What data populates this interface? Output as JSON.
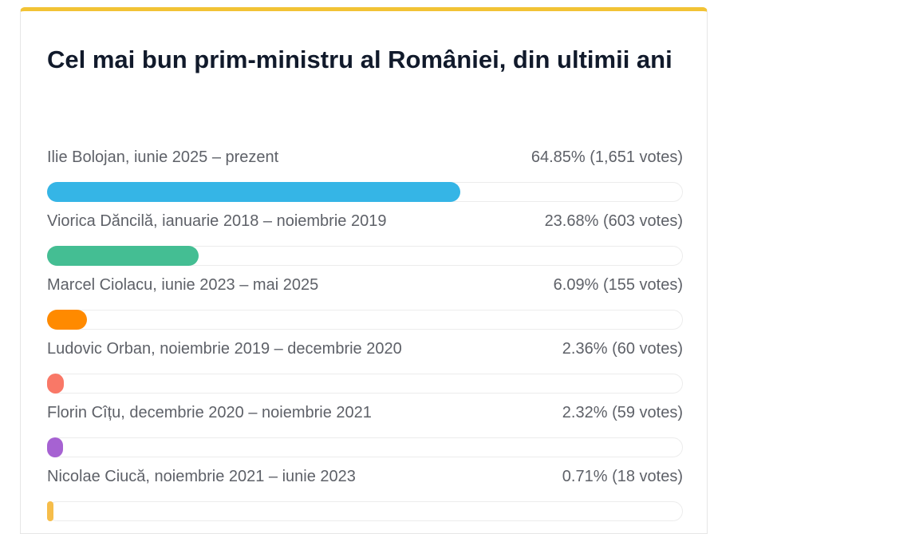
{
  "poll": {
    "title": "Cel mai bun prim-ministru al României, din ultimii ani",
    "accent_color": "#f2c335",
    "options": [
      {
        "label": "Ilie Bolojan, iunie 2025 – prezent",
        "result": "64.85% (1,651 votes)",
        "percent": 64.85,
        "color": "#35b5e6"
      },
      {
        "label": "Viorica Dăncilă, ianuarie 2018 – noiembrie 2019",
        "result": "23.68% (603 votes)",
        "percent": 23.68,
        "color": "#44be93"
      },
      {
        "label": "Marcel Ciolacu, iunie 2023 – mai 2025",
        "result": "6.09% (155 votes)",
        "percent": 6.09,
        "color": "#ff8a00"
      },
      {
        "label": "Ludovic Orban, noiembrie 2019 – decembrie 2020",
        "result": "2.36% (60 votes)",
        "percent": 2.36,
        "color": "#f97867"
      },
      {
        "label": "Florin Cîțu, decembrie 2020 – noiembrie 2021",
        "result": "2.32% (59 votes)",
        "percent": 2.32,
        "color": "#a662d2"
      },
      {
        "label": "Nicolae Ciucă, noiembrie 2021 – iunie 2023",
        "result": "0.71% (18 votes)",
        "percent": 0.71,
        "color": "#f6bd4a"
      }
    ]
  }
}
